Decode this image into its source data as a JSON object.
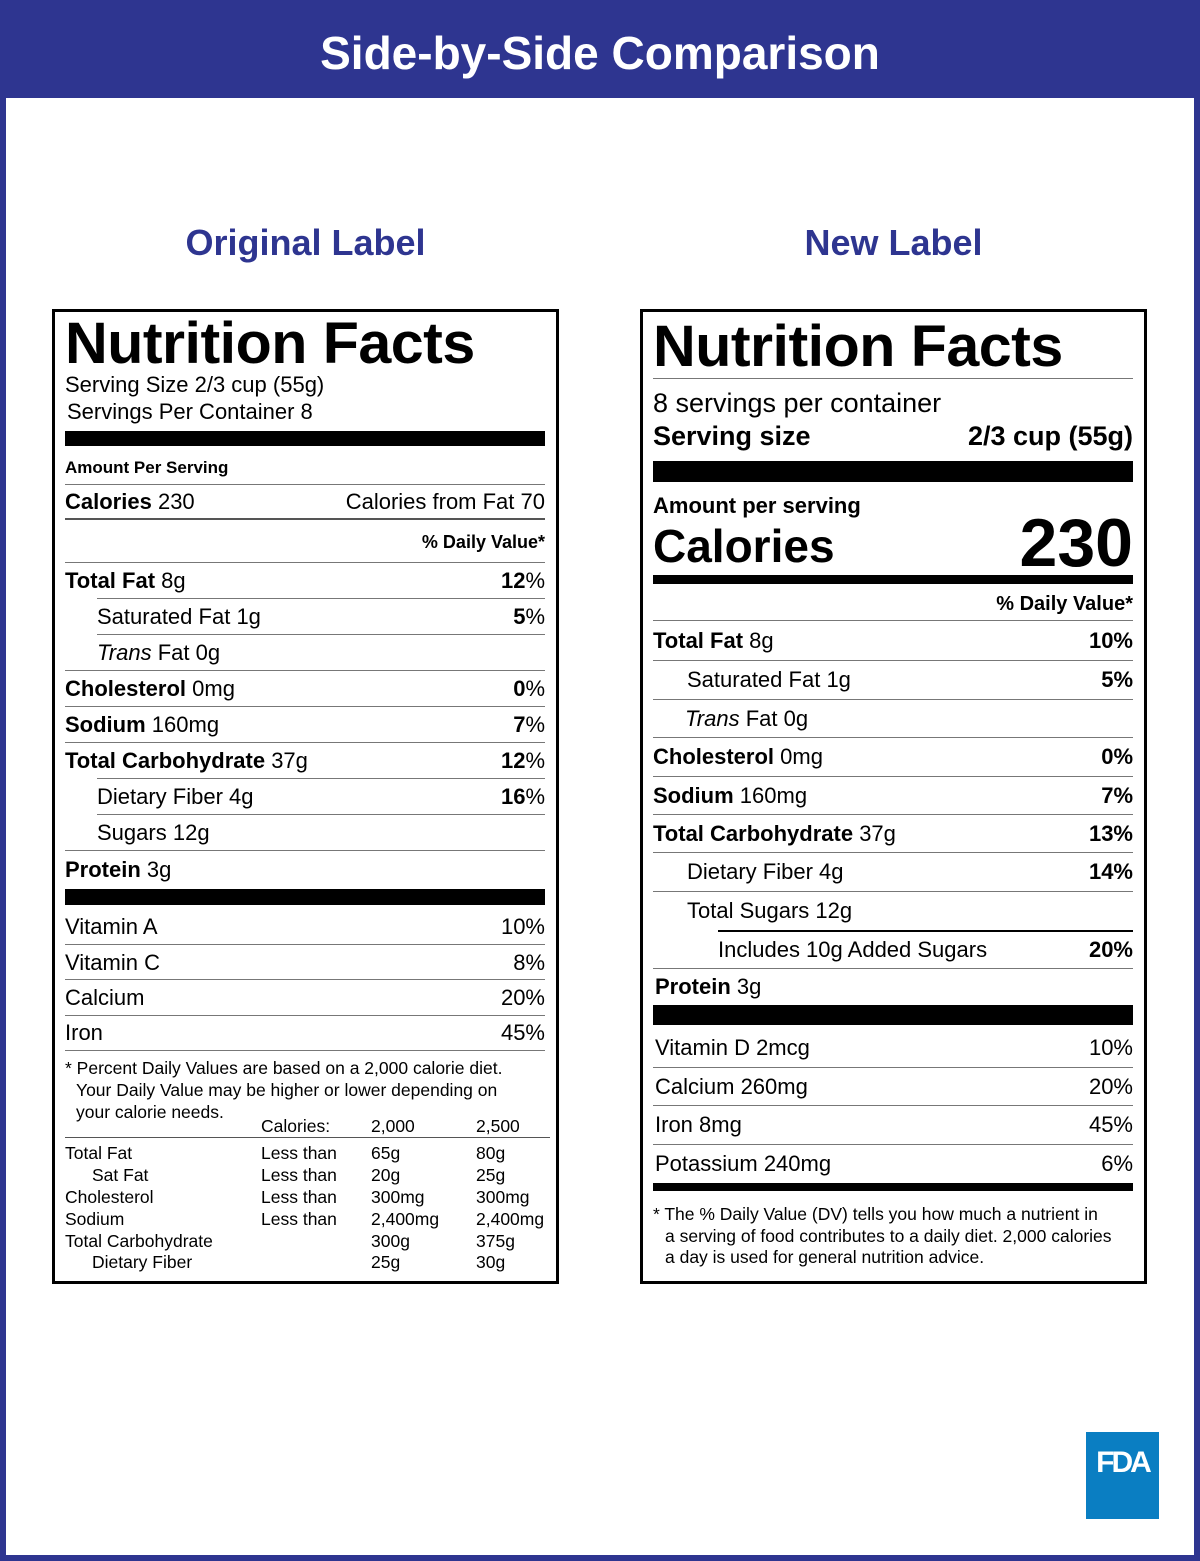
{
  "banner": "Side-by-Side Comparison",
  "original": {
    "heading": "Original Label",
    "title": "Nutrition Facts",
    "serving_size": "Serving Size 2/3 cup (55g)",
    "servings_per_container": "Servings Per Container 8",
    "amount_per_serving": "Amount Per Serving",
    "calories_label": "Calories",
    "calories_value": "230",
    "calories_from_fat": "Calories from Fat 70",
    "dv_header": "% Daily Value*",
    "nutrients": [
      {
        "name": "Total Fat",
        "amount": "8g",
        "dv": "12",
        "pct": "%"
      },
      {
        "name": "Saturated Fat",
        "amount": "1g",
        "dv": "5",
        "pct": "%"
      },
      {
        "italic": "Trans",
        "name": "Fat",
        "amount": "0g"
      },
      {
        "name": "Cholesterol",
        "amount": "0mg",
        "dv": "0",
        "pct": "%"
      },
      {
        "name": "Sodium",
        "amount": "160mg",
        "dv": "7",
        "pct": "%"
      },
      {
        "name": "Total Carbohydrate",
        "amount": "37g",
        "dv": "12",
        "pct": "%"
      },
      {
        "name": "Dietary Fiber",
        "amount": "4g",
        "dv": "16",
        "pct": "%"
      },
      {
        "name": "Sugars",
        "amount": "12g"
      },
      {
        "name": "Protein",
        "amount": "3g"
      }
    ],
    "vitamins": [
      {
        "name": "Vitamin A",
        "dv": "10%"
      },
      {
        "name": "Vitamin C",
        "dv": "8%"
      },
      {
        "name": "Calcium",
        "dv": "20%"
      },
      {
        "name": "Iron",
        "dv": "45%"
      }
    ],
    "footnote": [
      "* Percent Daily Values are based on a 2,000 calorie diet.",
      "Your Daily Value may be higher or lower depending on",
      "your calorie needs."
    ],
    "table_header": [
      "Calories:",
      "2,000",
      "2,500"
    ],
    "table_rows": [
      [
        "Total Fat",
        "Less than",
        "65g",
        "80g"
      ],
      [
        "Sat Fat",
        "Less than",
        "20g",
        "25g"
      ],
      [
        "Cholesterol",
        "Less than",
        "300mg",
        "300mg"
      ],
      [
        "Sodium",
        "Less than",
        "2,400mg",
        "2,400mg"
      ],
      [
        "Total Carbohydrate",
        "",
        "300g",
        "375g"
      ],
      [
        "Dietary Fiber",
        "",
        "25g",
        "30g"
      ]
    ]
  },
  "new": {
    "heading": "New Label",
    "title": "Nutrition Facts",
    "servings_per_container": "8 servings per container",
    "serving_size_label": "Serving size",
    "serving_size_value": "2/3 cup (55g)",
    "amount_per_serving": "Amount per serving",
    "calories_label": "Calories",
    "calories_value": "230",
    "dv_header": "% Daily Value*",
    "nutrients": [
      {
        "name": "Total Fat",
        "amount": "8g",
        "dv": "10%"
      },
      {
        "name": "Saturated Fat",
        "amount": "1g",
        "dv": "5%"
      },
      {
        "italic": "Trans",
        "name": "Fat",
        "amount": "0g"
      },
      {
        "name": "Cholesterol",
        "amount": "0mg",
        "dv": "0%"
      },
      {
        "name": "Sodium",
        "amount": "160mg",
        "dv": "7%"
      },
      {
        "name": "Total Carbohydrate",
        "amount": "37g",
        "dv": "13%"
      },
      {
        "name": "Dietary Fiber",
        "amount": "4g",
        "dv": "14%"
      },
      {
        "name": "Total Sugars",
        "amount": "12g"
      },
      {
        "name": "Includes 10g Added Sugars",
        "dv": "20%"
      },
      {
        "name": "Protein",
        "amount": "3g"
      }
    ],
    "vitamins": [
      {
        "name": "Vitamin D 2mcg",
        "dv": "10%"
      },
      {
        "name": "Calcium 260mg",
        "dv": "20%"
      },
      {
        "name": "Iron 8mg",
        "dv": "45%"
      },
      {
        "name": "Potassium 240mg",
        "dv": "6%"
      }
    ],
    "footnote": [
      "* The % Daily Value (DV) tells you how much a nutrient in",
      "a serving of food contributes to a daily diet. 2,000 calories",
      "a day is used for general nutrition advice."
    ]
  },
  "logo": "FDA",
  "colors": {
    "brand": "#2e3590",
    "fda": "#0a7ec2"
  }
}
